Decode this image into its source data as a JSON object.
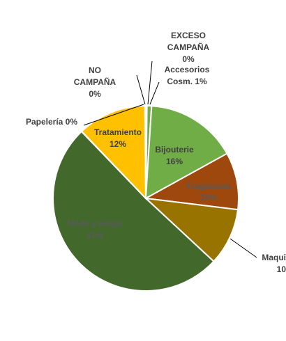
{
  "chart_data": {
    "type": "pie",
    "title": "",
    "slices": [
      {
        "name": "EXCESO CAMPAÑA",
        "lines": [
          "EXCESO",
          "CAMPAÑA",
          "0%"
        ],
        "percent_label": "0%",
        "value": 0.2,
        "color": "#70AD47"
      },
      {
        "name": "Accesorios Cosm.",
        "lines": [
          "Accesorios",
          "Cosm. 1%"
        ],
        "percent_label": "1%",
        "value": 0.8,
        "color": "#70AD47"
      },
      {
        "name": "Bijouterie",
        "lines": [
          "Bijouterie",
          "16%"
        ],
        "percent_label": "16%",
        "value": 16,
        "color": "#70AD47"
      },
      {
        "name": "Fragancias",
        "lines": [
          "Fragancias",
          "10%"
        ],
        "percent_label": "10%",
        "value": 10,
        "color": "#9E480E"
      },
      {
        "name": "Maqui",
        "lines": [
          "Maqui",
          "10"
        ],
        "percent_label": "10",
        "value": 10,
        "color": "#997300"
      },
      {
        "name": "Moda y Hogar",
        "lines": [
          "Moda y Hogar",
          "51%"
        ],
        "percent_label": "51%",
        "value": 51,
        "color": "#43682B"
      },
      {
        "name": "Papelería",
        "lines": [
          "Papelería 0%"
        ],
        "percent_label": "0%",
        "value": 0.05,
        "color": "#FFC000"
      },
      {
        "name": "Tratamiento",
        "lines": [
          "Tratamiento",
          "12%"
        ],
        "percent_label": "12%",
        "value": 12,
        "color": "#FFC000"
      },
      {
        "name": "NO CAMPAÑA",
        "lines": [
          "NO",
          "CAMPAÑA",
          "0%"
        ],
        "percent_label": "0%",
        "value": 0.15,
        "color": "#FFC000"
      }
    ],
    "legend": "none"
  }
}
